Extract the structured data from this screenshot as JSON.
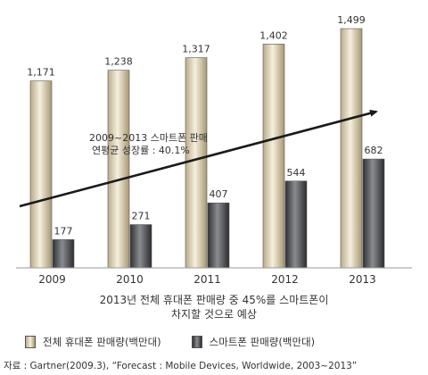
{
  "chart_data": {
    "type": "bar",
    "categories": [
      "2009",
      "2010",
      "2011",
      "2012",
      "2013"
    ],
    "series": [
      {
        "name": "전체 휴대폰 판매량(백만대)",
        "values": [
          1171,
          1238,
          1317,
          1402,
          1499
        ],
        "color": "#e6dcc4"
      },
      {
        "name": "스마트폰 판매량(백만대)",
        "values": [
          177,
          271,
          407,
          544,
          682
        ],
        "color": "#55575c"
      }
    ],
    "data_labels": [
      [
        "1,171",
        "1,238",
        "1,317",
        "1,402",
        "1,499"
      ],
      [
        "177",
        "271",
        "407",
        "544",
        "682"
      ]
    ],
    "ylim": [
      0,
      1600
    ],
    "annotations": {
      "growth_line1": "2009~2013 스마트폰 판매",
      "growth_line2": "연평균 성장률 : 40.1%",
      "note_line1": "2013년 전체 휴대폰 판매량 중 45%를 스마트폰이",
      "note_line2": "차지할 것으로 예상"
    },
    "legend_placement": "bottom",
    "grid": false
  },
  "legend": {
    "total_label": "전체 휴대폰 판매량(백만대)",
    "smart_label": "스마트폰 판매량(백만대)"
  },
  "source": "자료 : Gartner(2009.3), “Forecast : Mobile Devices, Worldwide, 2003~2013”"
}
